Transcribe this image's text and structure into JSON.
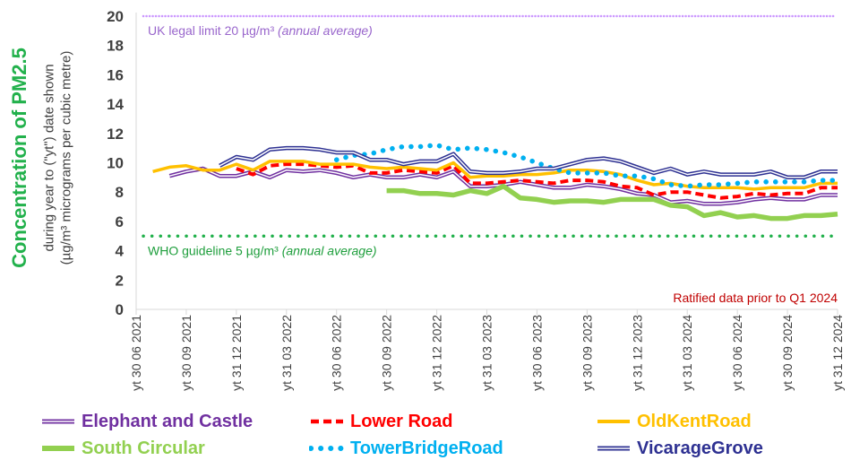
{
  "chart_data": {
    "type": "line",
    "ylabel_main": "Concentration of PM2.5",
    "ylabel_sub1": "during year to (\"yt\") date shown",
    "ylabel_sub2": "(µg/m³ micrograms per cubic metre)",
    "ylim": [
      0,
      20
    ],
    "yticks": [
      0,
      2,
      4,
      6,
      8,
      10,
      12,
      14,
      16,
      18,
      20
    ],
    "x_ticks": [
      "yt 30 06 2021",
      "yt 30 09 2021",
      "yt 31 12 2021",
      "yt 31 03 2022",
      "yt 30 06 2022",
      "yt 30 09 2022",
      "yt 31 12 2022",
      "yt 31 03 2023",
      "yt 30 06 2023",
      "yt 30 09 2023",
      "yt 31 12 2023",
      "yt 31 03 2024",
      "yt 30 06 2024",
      "yt 30 09 2024",
      "yt 31 12 2024"
    ],
    "x_month_range": [
      0,
      42
    ],
    "grid": false,
    "reference_lines": [
      {
        "label": "UK legal limit 20 µg/m³",
        "note": "(annual average)",
        "value": 20,
        "color": "#cc99ff"
      },
      {
        "label": "WHO guideline 5 µg/m³",
        "note": "(annual average)",
        "value": 5,
        "color": "#22b14c"
      }
    ],
    "annotation": "Ratified data prior to Q1 2024",
    "series": [
      {
        "name": "Elephant and Castle",
        "color": "#7030a0",
        "style": "double",
        "x": [
          2,
          3,
          4,
          5,
          6,
          7,
          8,
          9,
          10,
          11,
          12,
          13,
          14,
          15,
          16,
          17,
          18,
          19,
          20,
          21,
          22,
          23,
          24,
          25,
          26,
          27,
          28,
          29,
          30,
          31,
          32,
          33,
          34,
          35,
          36,
          37,
          38,
          39,
          40,
          41,
          42
        ],
        "values": [
          9.1,
          9.4,
          9.6,
          9.1,
          9.1,
          9.4,
          9.0,
          9.5,
          9.4,
          9.5,
          9.3,
          9.0,
          9.2,
          9.0,
          9.0,
          9.2,
          9.0,
          9.4,
          8.4,
          8.4,
          8.5,
          8.7,
          8.5,
          8.3,
          8.3,
          8.5,
          8.4,
          8.2,
          7.9,
          7.8,
          7.3,
          7.4,
          7.2,
          7.2,
          7.3,
          7.5,
          7.6,
          7.5,
          7.5,
          7.8,
          7.8
        ]
      },
      {
        "name": "Lower Road",
        "color": "#ff0000",
        "style": "dashed",
        "x": [
          6,
          7,
          8,
          9,
          10,
          11,
          12,
          13,
          14,
          15,
          16,
          17,
          18,
          19,
          20,
          21,
          22,
          23,
          24,
          25,
          26,
          27,
          28,
          29,
          30,
          31,
          32,
          33,
          34,
          35,
          36,
          37,
          38,
          39,
          40,
          41,
          42
        ],
        "values": [
          9.6,
          9.2,
          9.8,
          9.9,
          9.9,
          9.8,
          9.7,
          9.8,
          9.3,
          9.3,
          9.5,
          9.4,
          9.3,
          9.8,
          8.6,
          8.6,
          8.7,
          8.8,
          8.7,
          8.6,
          8.8,
          8.8,
          8.7,
          8.4,
          8.3,
          7.8,
          8.0,
          8.0,
          7.8,
          7.6,
          7.7,
          7.9,
          7.8,
          7.9,
          7.9,
          8.3,
          8.3
        ]
      },
      {
        "name": "OldKentRoad",
        "color": "#ffc000",
        "style": "solid",
        "x": [
          1,
          2,
          3,
          4,
          5,
          6,
          7,
          8,
          9,
          10,
          11,
          12,
          13,
          14,
          15,
          16,
          17,
          18,
          19,
          20,
          21,
          22,
          23,
          24,
          25,
          26,
          27,
          28,
          29,
          30,
          31,
          32,
          33,
          34,
          35,
          36,
          37,
          38,
          39,
          40,
          41,
          42
        ],
        "values": [
          9.4,
          9.7,
          9.8,
          9.5,
          9.5,
          9.9,
          9.5,
          10.1,
          10.1,
          10.1,
          9.9,
          9.9,
          9.9,
          9.7,
          9.6,
          9.7,
          9.6,
          9.5,
          10.0,
          9.0,
          9.1,
          9.1,
          9.2,
          9.2,
          9.3,
          9.5,
          9.5,
          9.4,
          9.2,
          8.8,
          8.5,
          8.6,
          8.4,
          8.3,
          8.3,
          8.3,
          8.2,
          8.3,
          8.3,
          8.3,
          8.6,
          8.6
        ]
      },
      {
        "name": "South Circular",
        "color": "#92d050",
        "style": "thick",
        "x": [
          15,
          16,
          17,
          18,
          19,
          20,
          21,
          22,
          23,
          24,
          25,
          26,
          27,
          28,
          29,
          30,
          31,
          32,
          33,
          34,
          35,
          36,
          37,
          38,
          39,
          40,
          41,
          42
        ],
        "values": [
          8.1,
          8.1,
          7.9,
          7.9,
          7.8,
          8.1,
          7.9,
          8.4,
          7.6,
          7.5,
          7.3,
          7.4,
          7.4,
          7.3,
          7.5,
          7.5,
          7.5,
          7.1,
          7.0,
          6.4,
          6.6,
          6.3,
          6.4,
          6.2,
          6.2,
          6.4,
          6.4,
          6.5
        ]
      },
      {
        "name": "TowerBridgeRoad",
        "color": "#00b0f0",
        "style": "dotted",
        "x": [
          12,
          13,
          14,
          15,
          16,
          17,
          18,
          19,
          20,
          21,
          22,
          23,
          24,
          25,
          26,
          27,
          28,
          29,
          30,
          31,
          32,
          33,
          34,
          35,
          36,
          37,
          38,
          39,
          40,
          41,
          42
        ],
        "values": [
          10.2,
          10.5,
          10.6,
          10.9,
          11.1,
          11.1,
          11.2,
          10.9,
          11.0,
          10.9,
          10.7,
          10.4,
          10.0,
          9.6,
          9.3,
          9.3,
          9.3,
          9.1,
          9.1,
          8.9,
          8.5,
          8.4,
          8.5,
          8.5,
          8.6,
          8.7,
          8.7,
          8.7,
          8.7,
          8.8,
          8.8
        ]
      },
      {
        "name": "VicarageGrove",
        "color": "#2e3192",
        "style": "double",
        "x": [
          5,
          6,
          7,
          8,
          9,
          10,
          11,
          12,
          13,
          14,
          15,
          16,
          17,
          18,
          19,
          20,
          21,
          22,
          23,
          24,
          25,
          26,
          27,
          28,
          29,
          30,
          31,
          32,
          33,
          34,
          35,
          36,
          37,
          38,
          39,
          40,
          41,
          42
        ],
        "values": [
          9.8,
          10.4,
          10.2,
          10.9,
          11.0,
          11.0,
          10.9,
          10.7,
          10.7,
          10.2,
          10.2,
          9.9,
          10.1,
          10.1,
          10.6,
          9.4,
          9.3,
          9.3,
          9.4,
          9.6,
          9.6,
          9.9,
          10.2,
          10.3,
          10.1,
          9.7,
          9.3,
          9.6,
          9.2,
          9.4,
          9.2,
          9.2,
          9.2,
          9.4,
          9.0,
          9.0,
          9.4,
          9.4
        ]
      }
    ]
  }
}
